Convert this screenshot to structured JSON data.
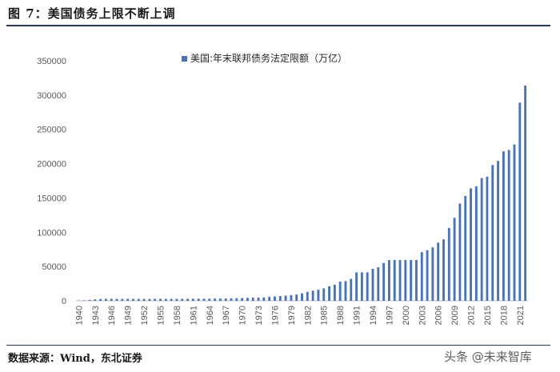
{
  "figure": {
    "title": "图 7：美国债务上限不断上调",
    "source": "数据来源：Wind，东北证券",
    "watermark": "头条 @未来智库"
  },
  "colors": {
    "bar": "#4472c4",
    "axis": "#bfbfbf",
    "rule": "#1f3864"
  },
  "chart_data": {
    "type": "bar",
    "title": "",
    "legend": "美国:年末联邦债务法定限额（万亿）",
    "legend_position": "top",
    "xlabel": "",
    "ylabel": "",
    "ylim": [
      0,
      350000
    ],
    "yticks": [
      0,
      50000,
      100000,
      150000,
      200000,
      250000,
      300000,
      350000
    ],
    "xticks": [
      "1940",
      "1943",
      "1946",
      "1949",
      "1952",
      "1955",
      "1958",
      "1961",
      "1964",
      "1967",
      "1970",
      "1973",
      "1976",
      "1979",
      "1982",
      "1985",
      "1988",
      "1991",
      "1994",
      "1997",
      "2000",
      "2003",
      "2006",
      "2009",
      "2012",
      "2015",
      "2018",
      "2021"
    ],
    "categories": [
      "1940",
      "1941",
      "1942",
      "1943",
      "1944",
      "1945",
      "1946",
      "1947",
      "1948",
      "1949",
      "1950",
      "1951",
      "1952",
      "1953",
      "1954",
      "1955",
      "1956",
      "1957",
      "1958",
      "1959",
      "1960",
      "1961",
      "1962",
      "1963",
      "1964",
      "1965",
      "1966",
      "1967",
      "1968",
      "1969",
      "1970",
      "1971",
      "1972",
      "1973",
      "1974",
      "1975",
      "1976",
      "1977",
      "1978",
      "1979",
      "1980",
      "1981",
      "1982",
      "1983",
      "1984",
      "1985",
      "1986",
      "1987",
      "1988",
      "1989",
      "1990",
      "1991",
      "1992",
      "1993",
      "1994",
      "1995",
      "1996",
      "1997",
      "1998",
      "1999",
      "2000",
      "2001",
      "2002",
      "2003",
      "2004",
      "2005",
      "2006",
      "2007",
      "2008",
      "2009",
      "2010",
      "2011",
      "2012",
      "2013",
      "2014",
      "2015",
      "2016",
      "2017",
      "2018",
      "2019",
      "2020",
      "2021",
      "2022"
    ],
    "values": [
      450,
      650,
      1250,
      2100,
      2600,
      3000,
      3000,
      2750,
      2750,
      2750,
      2750,
      2750,
      2750,
      2750,
      2810,
      2810,
      2780,
      2750,
      2800,
      2900,
      2950,
      2980,
      3080,
      3090,
      3150,
      3240,
      3300,
      3360,
      3650,
      3770,
      3950,
      4300,
      4580,
      4650,
      4950,
      5770,
      6360,
      7000,
      7520,
      8300,
      9250,
      10800,
      12900,
      14900,
      16200,
      18200,
      21100,
      23500,
      28000,
      28700,
      32000,
      41500,
      41500,
      41500,
      46700,
      49000,
      55000,
      59500,
      59500,
      59500,
      59500,
      59500,
      59500,
      71000,
      73800,
      78000,
      84800,
      89700,
      106150,
      121040,
      141940,
      152940,
      164000,
      167000,
      179000,
      181000,
      198000,
      204000,
      218000,
      220000,
      228000,
      289000,
      314000
    ]
  }
}
